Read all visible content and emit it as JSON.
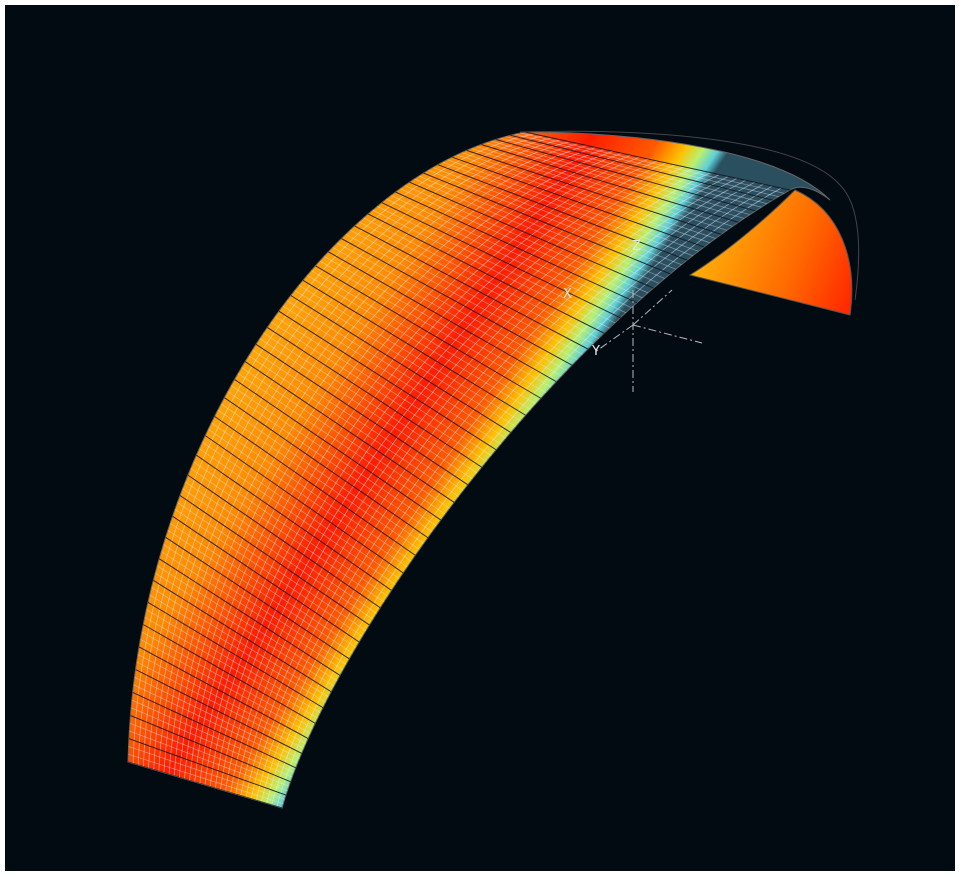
{
  "axes": {
    "x_label": "X",
    "y_label": "Y",
    "z_label": "Z"
  }
}
